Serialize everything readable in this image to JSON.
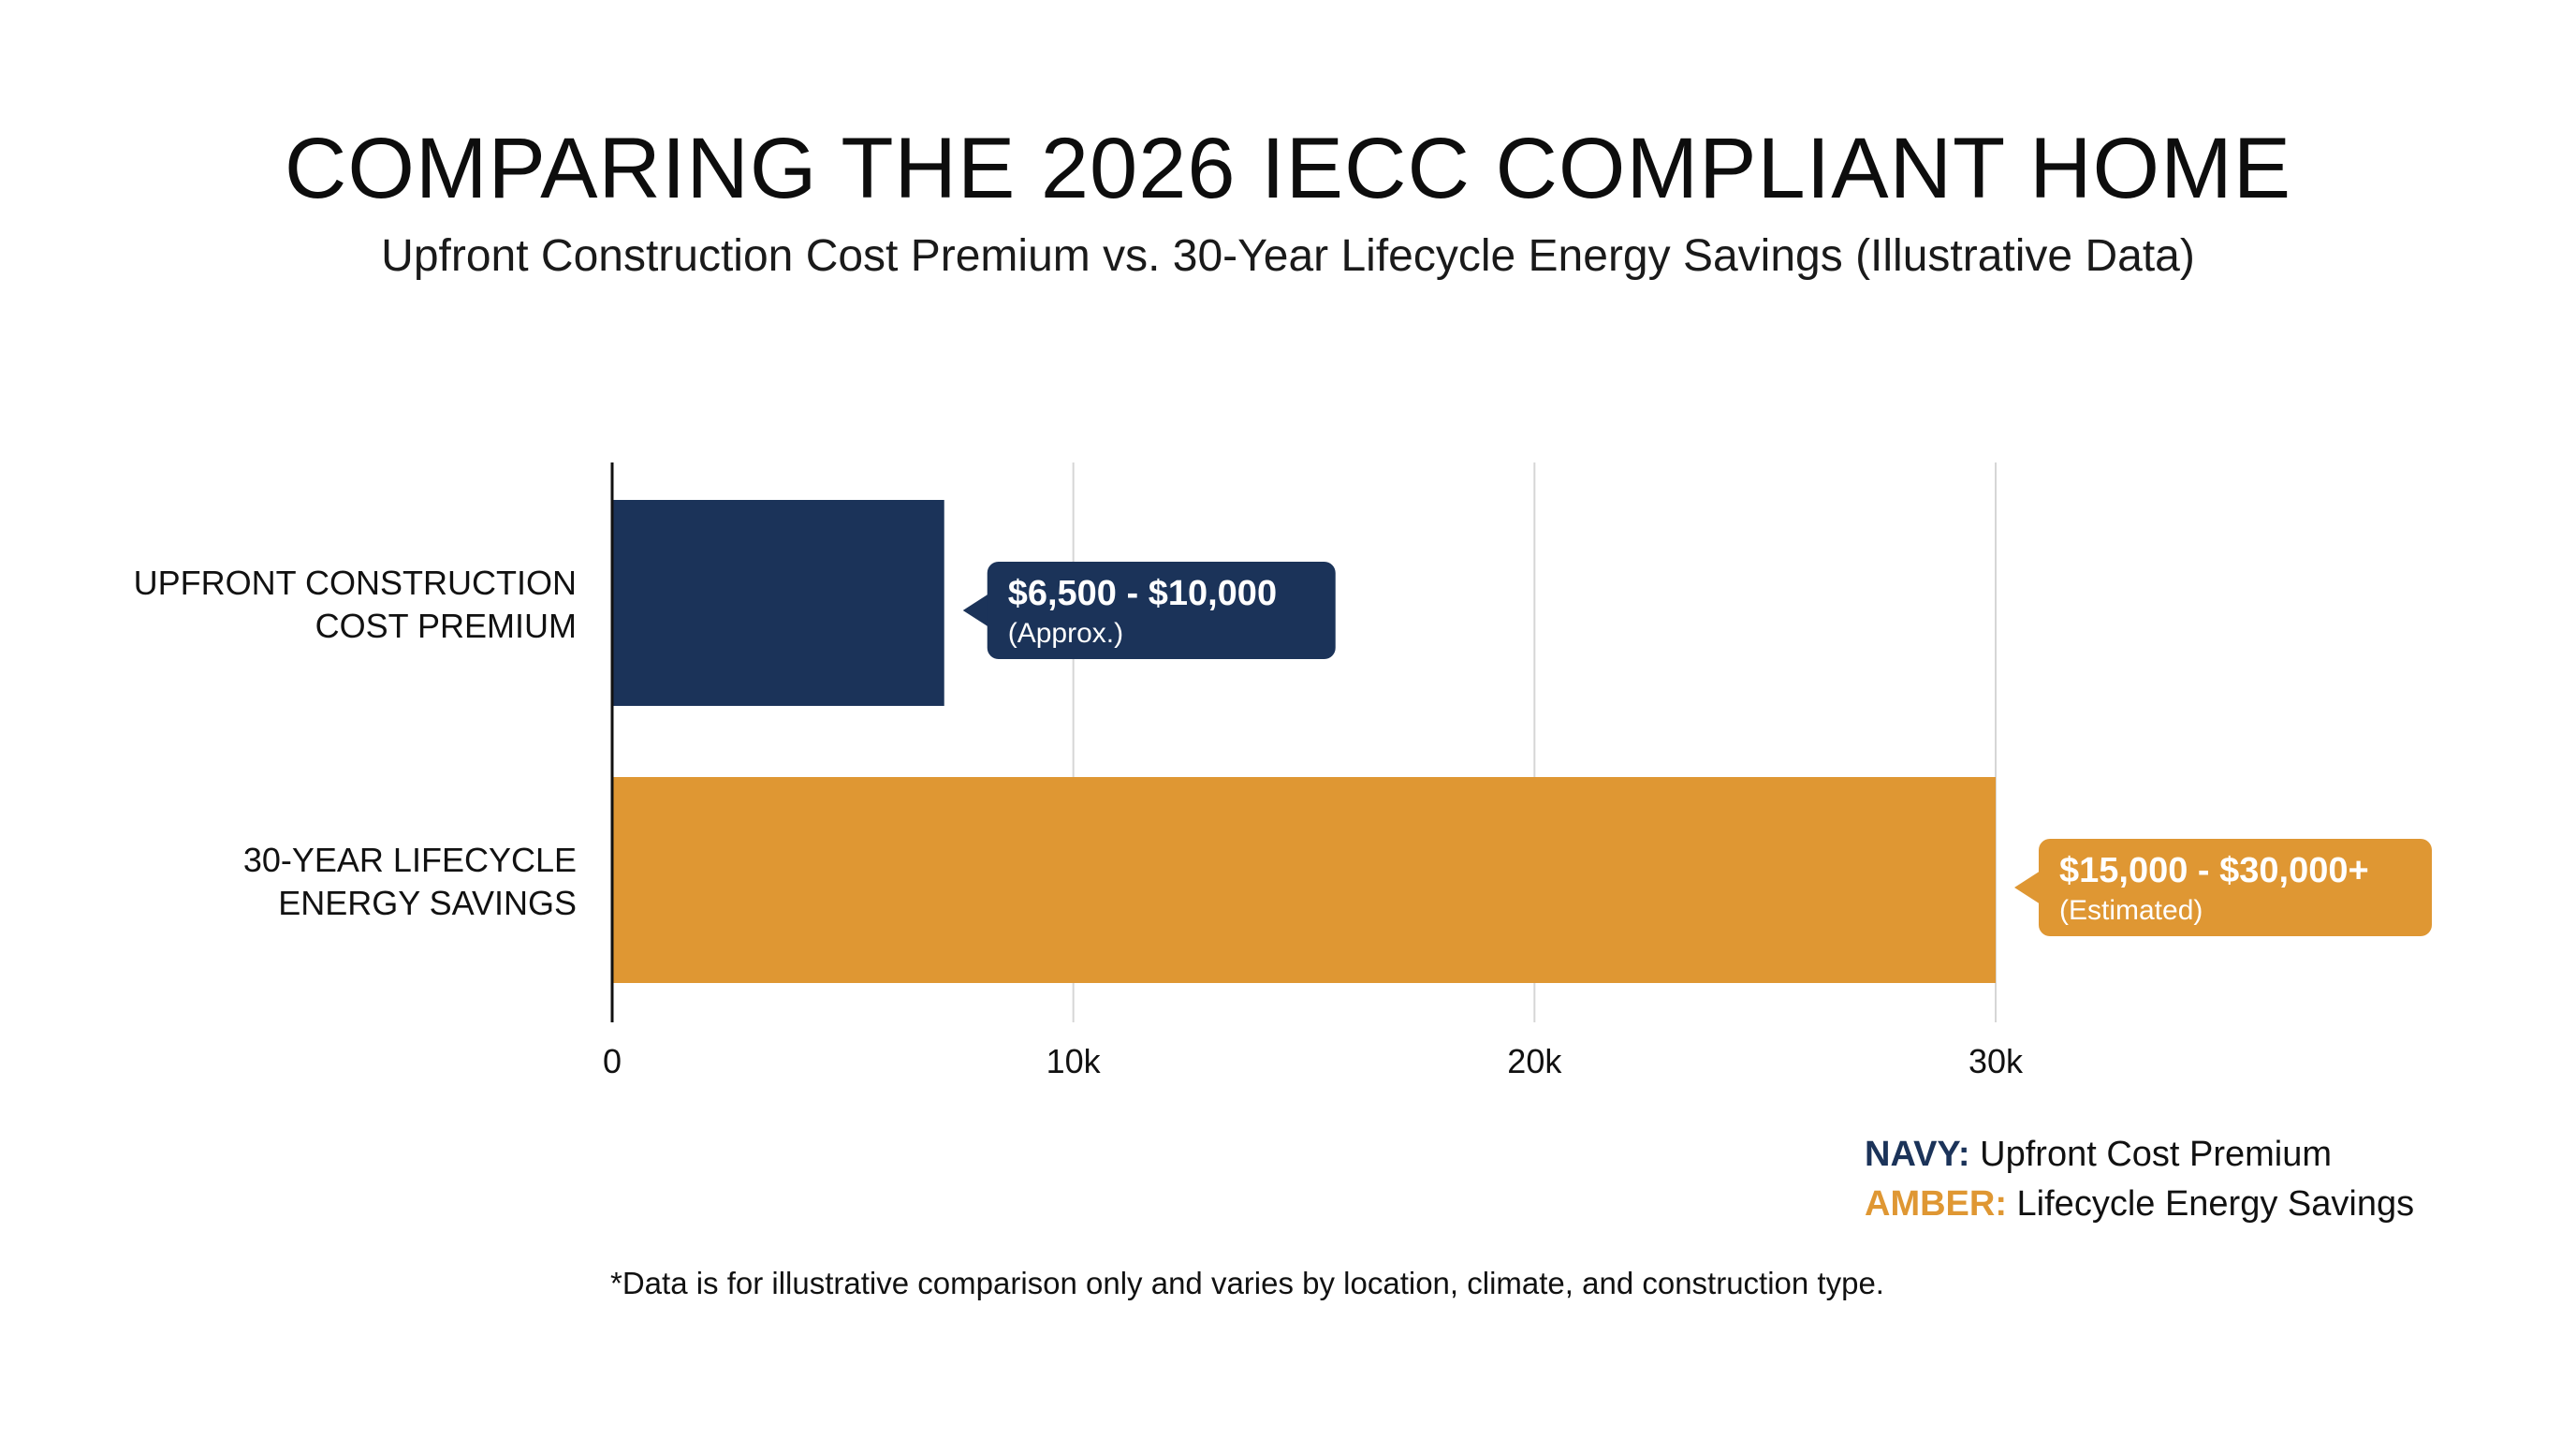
{
  "title": "COMPARING THE 2026 IECC COMPLIANT HOME",
  "subtitle": "Upfront Construction Cost Premium vs. 30-Year Lifecycle Energy Savings (Illustrative Data)",
  "colors": {
    "navy": "#1b3359",
    "amber": "#df9733",
    "grid": "#d6d6d6",
    "axis": "#111111"
  },
  "chart_data": {
    "type": "bar",
    "orientation": "horizontal",
    "categories": [
      "UPFRONT CONSTRUCTION COST PREMIUM",
      "30-YEAR LIFECYCLE ENERGY SAVINGS"
    ],
    "category_lines": [
      [
        "UPFRONT CONSTRUCTION",
        "COST PREMIUM"
      ],
      [
        "30-YEAR LIFECYCLE",
        "ENERGY SAVINGS"
      ]
    ],
    "values": [
      7200,
      30000
    ],
    "xlim": [
      0,
      30000
    ],
    "xticks": [
      0,
      10000,
      20000,
      30000
    ],
    "xtick_labels": [
      "0",
      "10k",
      "20k",
      "30k"
    ],
    "grid": true,
    "data_labels": [
      {
        "main": "$6,500 - $10,000",
        "sub": "(Approx.)"
      },
      {
        "main": "$15,000 - $30,000+",
        "sub": "(Estimated)"
      }
    ]
  },
  "legend": {
    "placement": "bottom-right",
    "items": [
      {
        "key": "NAVY:",
        "label": "Upfront Cost Premium",
        "color": "#1b3359"
      },
      {
        "key": "AMBER:",
        "label": "Lifecycle Energy Savings",
        "color": "#df9733"
      }
    ]
  },
  "footnote": "*Data is for illustrative comparison only and varies by location, climate, and construction type."
}
